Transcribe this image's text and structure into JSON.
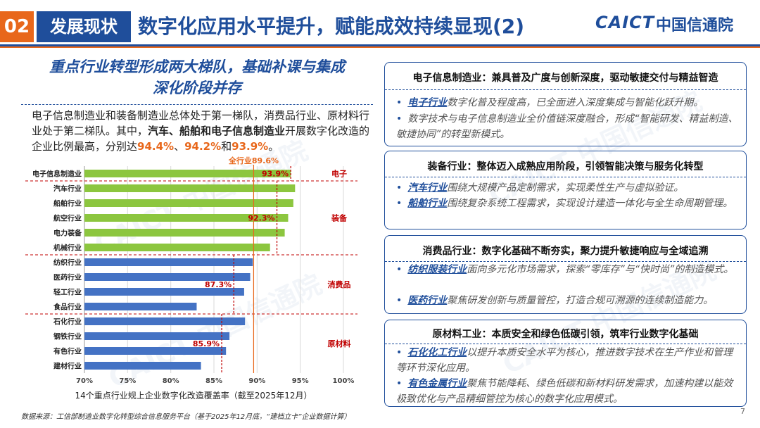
{
  "header": {
    "section_number": "02",
    "section_name": "发展现状",
    "title": "数字化应用水平提升，赋能成效持续显现(2)",
    "logo_text": "CAICT",
    "logo_cn": "中国信通院"
  },
  "left": {
    "heading_line1": "重点行业转型形成两大梯队，基础补课与集成",
    "heading_line2": "深化阶段并存",
    "para_1": "电子信息制造业和装备制造业总体处于第一梯队，消费品行业、原材料行业处于第二梯队。其中，",
    "para_bold": "汽车、船舶和电子信息制造业",
    "para_2": "开展数字化改造的企业比例最高，分别达",
    "pct_1": "94.4%",
    "sep_1": "、",
    "pct_2": "94.2%",
    "sep_2": "和",
    "pct_3": "93.9%",
    "para_end": "。"
  },
  "chart_data": {
    "type": "bar",
    "orientation": "horizontal",
    "title": "",
    "xlabel": "14个重点行业规上企业数字化改造覆盖率（截至2025年12月）",
    "xlim": [
      70,
      100
    ],
    "xticks": [
      "70%",
      "75%",
      "80%",
      "85%",
      "90%",
      "95%",
      "100%"
    ],
    "categories": [
      "电子信息制造业",
      "汽车行业",
      "船舶行业",
      "航空行业",
      "电力装备",
      "机械行业",
      "纺织行业",
      "医药行业",
      "轻工行业",
      "食品行业",
      "石化行业",
      "钢铁行业",
      "有色行业",
      "建材行业"
    ],
    "values": [
      93.9,
      94.4,
      94.2,
      93.6,
      93.2,
      91.5,
      89.5,
      89.2,
      88.5,
      83.0,
      88.6,
      86.8,
      86.4,
      83.5
    ],
    "colors": [
      "#8cc63f",
      "#8cc63f",
      "#8cc63f",
      "#8cc63f",
      "#8cc63f",
      "#8cc63f",
      "#4472c4",
      "#4472c4",
      "#4472c4",
      "#4472c4",
      "#4472c4",
      "#4472c4",
      "#4472c4",
      "#4472c4"
    ],
    "overall_line": {
      "value": 89.6,
      "label": "全行业89.6%"
    },
    "groups": [
      {
        "name": "电子",
        "start": 0,
        "end": 0,
        "avg": 93.9,
        "avg_label": "93.9%"
      },
      {
        "name": "装备",
        "start": 1,
        "end": 5,
        "avg": 92.3,
        "avg_label": "92.3%"
      },
      {
        "name": "消费品",
        "start": 6,
        "end": 9,
        "avg": 87.3,
        "avg_label": "87.3%"
      },
      {
        "name": "原材料",
        "start": 10,
        "end": 13,
        "avg": 85.9,
        "avg_label": "85.9%"
      }
    ]
  },
  "source": "数据来源：工信部制造业数字化转型综合信息服务平台（基于2025年12月底，“建档立卡”企业数据计算）",
  "page_number": "7",
  "colors": {
    "primary": "#1f4e9b",
    "accent": "#e8671b",
    "red": "#c00000",
    "green": "#8cc63f",
    "blue": "#4472c4"
  },
  "panels": [
    {
      "title": "电子信息制造业：兼具普及广度与创新深度，驱动敏捷交付与精益智造",
      "bullets": [
        {
          "kw": "电子行业",
          "text": "数字化普及程度高，已全面进入深度集成与智能化跃升期。"
        },
        {
          "kw": "",
          "text": "数字技术与电子信息制造业全价值链深度融合，形成“智能研发、精益制造、敏捷协同”的转型新模式。"
        }
      ]
    },
    {
      "title": "装备行业：整体迈入成熟应用阶段，引领智能决策与服务化转型",
      "bullets": [
        {
          "kw": "汽车行业",
          "text": "围绕大规模产品定制需求，实现柔性生产与虚拟验证。"
        },
        {
          "kw": "船舶行业",
          "text": "围绕复杂系统工程需求，实现设计建造一体化与全生命周期管理。"
        }
      ]
    },
    {
      "title": "消费品行业：数字化基础不断夯实，聚力提升敏捷响应与全域追溯",
      "bullets": [
        {
          "kw": "纺织服装行业",
          "text": "面向多元化市场需求，探索“零库存”与“快时尚”的制造模式。"
        },
        {
          "kw": "医药行业",
          "text": "聚焦研发创新与质量管控，打造合规可溯源的连续制造能力。"
        }
      ]
    },
    {
      "title": "原材料工业：本质安全和绿色低碳引领，筑牢行业数字化基础",
      "bullets": [
        {
          "kw": "石化化工行业",
          "text": "以提升本质安全水平为核心，推进数字技术在生产作业和管理等环节深化应用。"
        },
        {
          "kw": "有色金属行业",
          "text": "聚焦节能降耗、绿色低碳和新材料研发需求，加速构建以能效极致优化与产品精细管控为核心的数字化应用模式。"
        }
      ]
    }
  ]
}
